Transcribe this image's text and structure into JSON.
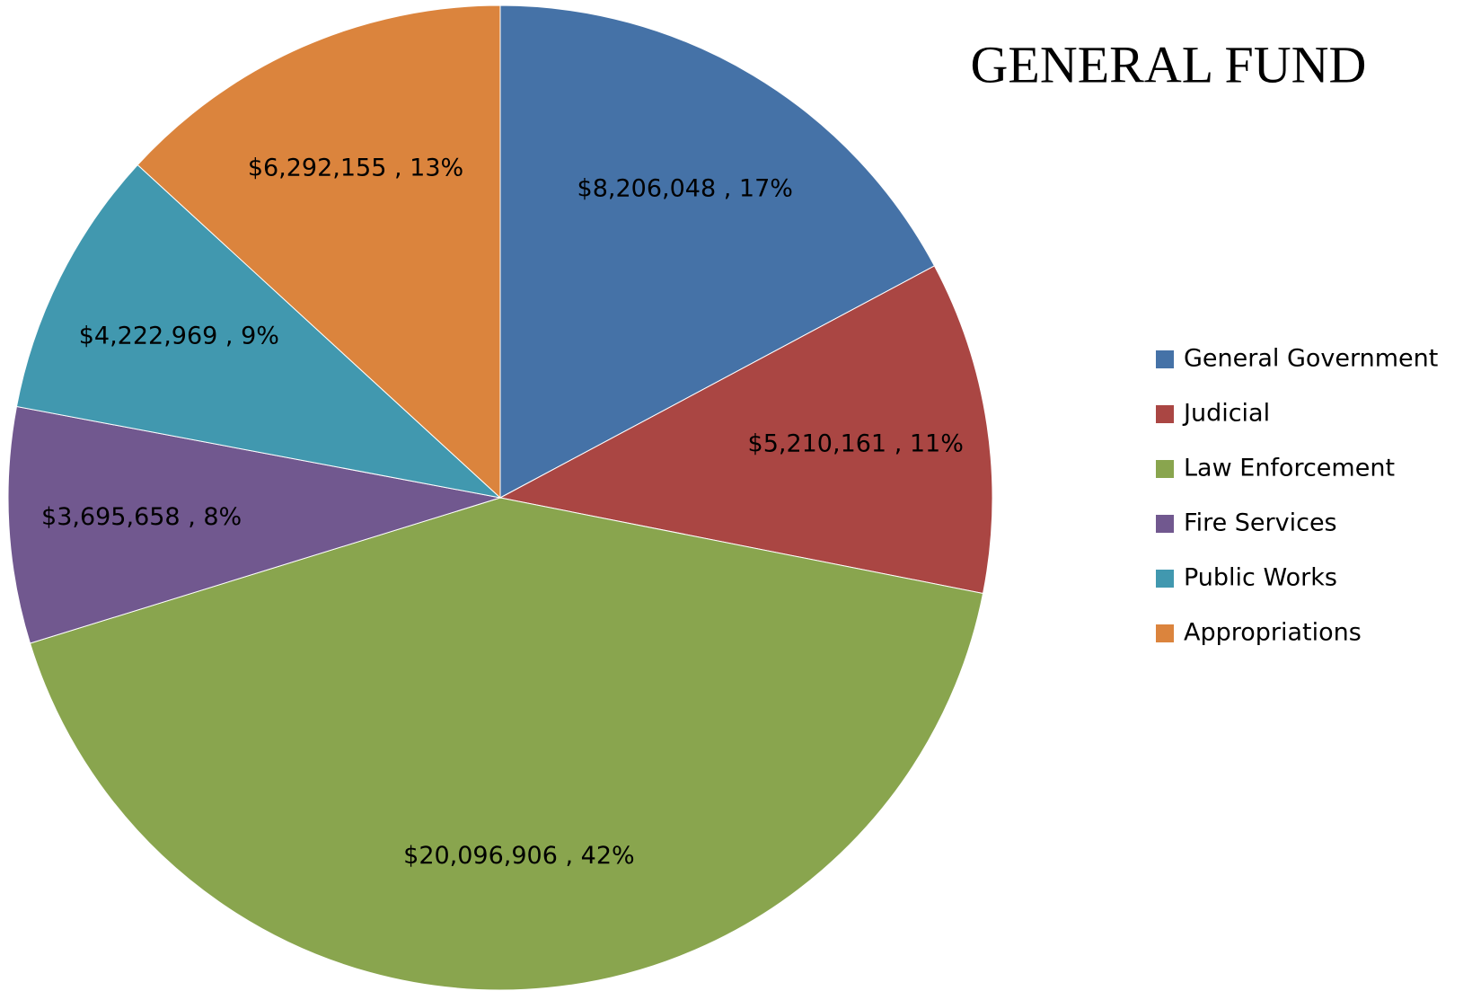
{
  "chart_data": {
    "type": "pie",
    "title": "GENERAL FUND",
    "categories": [
      "General Government",
      "Judicial",
      "Law Enforcement",
      "Fire Services",
      "Public Works",
      "Appropriations"
    ],
    "values": [
      8206048,
      5210161,
      20096906,
      3695658,
      4222969,
      6292155
    ],
    "value_labels": [
      "$8,206,048 , 17%",
      "$5,210,161 , 11%",
      "$20,096,906 , 42%",
      "$3,695,658 , 8%",
      "$4,222,969 , 9%",
      "$6,292,155 , 13%"
    ],
    "colors": [
      "#4572A7",
      "#AA4643",
      "#89A54E",
      "#71588F",
      "#4198AF",
      "#DB843D"
    ],
    "legend": "right"
  }
}
